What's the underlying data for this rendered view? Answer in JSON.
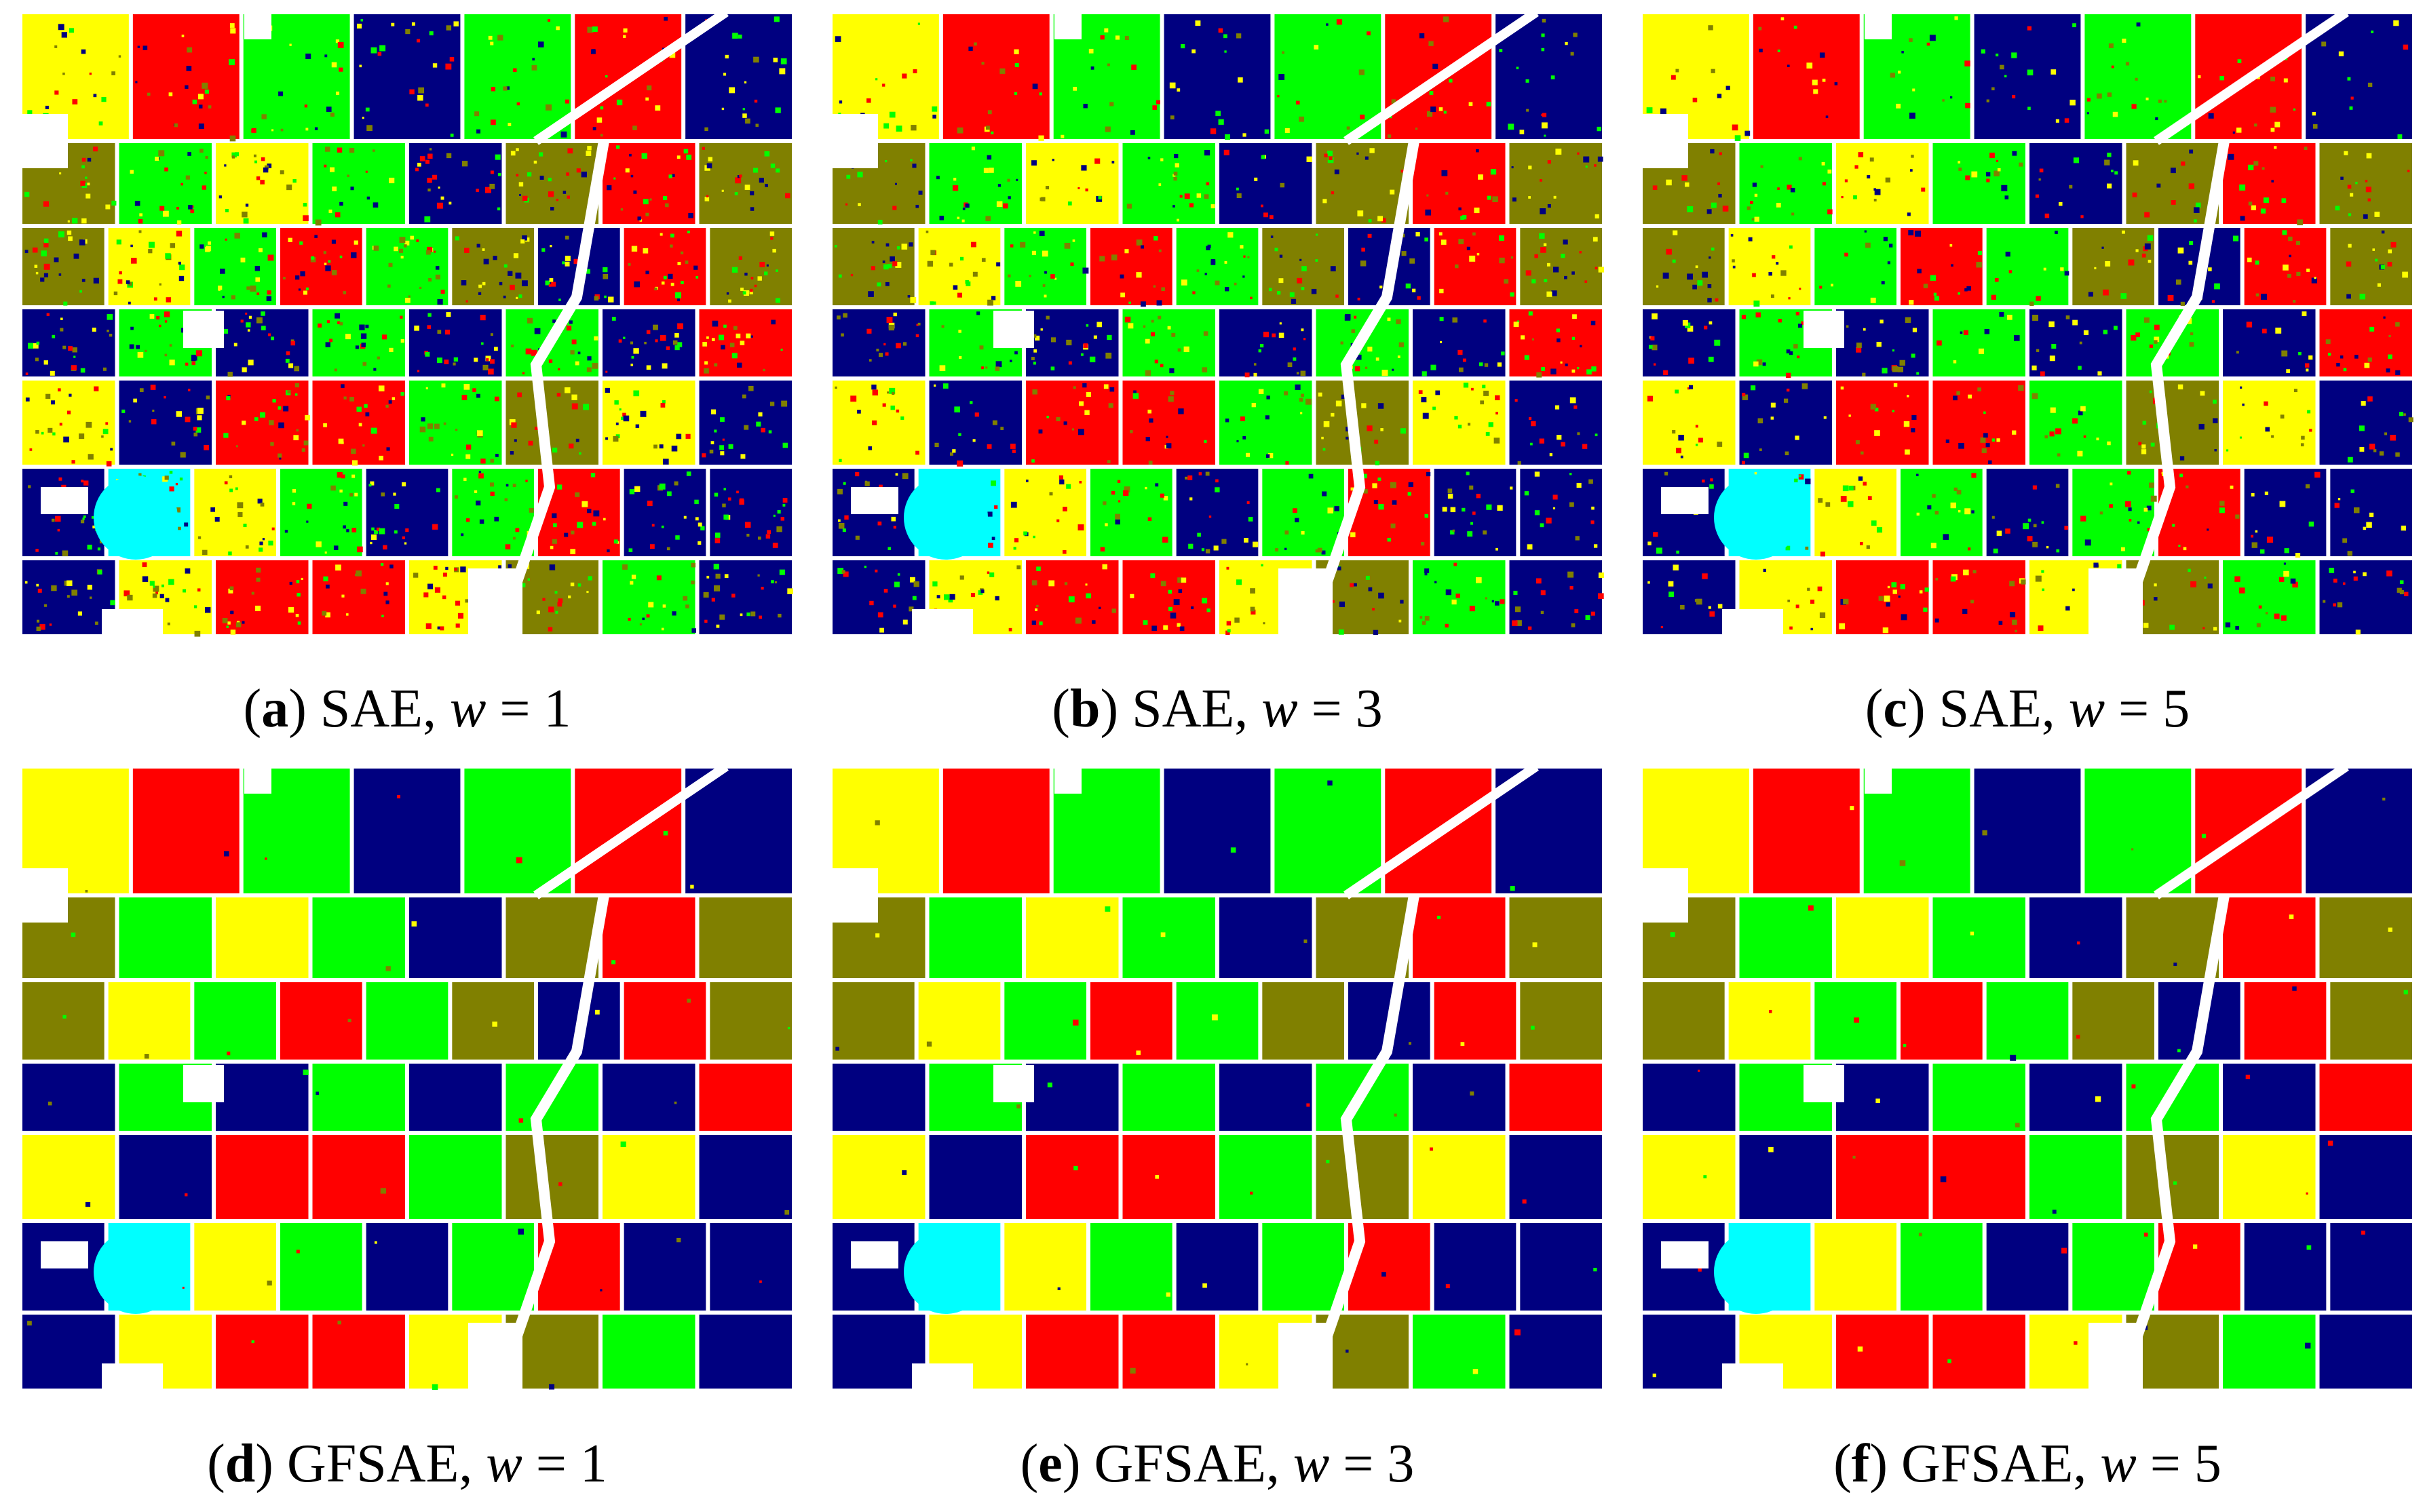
{
  "colors": {
    "yellow": "#ffff00",
    "red": "#ff0000",
    "green": "#00ff00",
    "navy": "#000080",
    "olive": "#808000",
    "cyan": "#00ffff",
    "gap": "#ffffff"
  },
  "panels": [
    {
      "letter": "a",
      "method": "SAE",
      "w_label": "w",
      "eq": " = ",
      "w_value": "1",
      "noise": 0.95
    },
    {
      "letter": "b",
      "method": "SAE",
      "w_label": "w",
      "eq": " = ",
      "w_value": "3",
      "noise": 0.75
    },
    {
      "letter": "c",
      "method": "SAE",
      "w_label": "w",
      "eq": " = ",
      "w_value": "5",
      "noise": 0.6
    },
    {
      "letter": "d",
      "method": "GFSAE",
      "w_label": "w",
      "eq": " = ",
      "w_value": "1",
      "noise": 0.05
    },
    {
      "letter": "e",
      "method": "GFSAE",
      "w_label": "w",
      "eq": " = ",
      "w_value": "3",
      "noise": 0.04
    },
    {
      "letter": "f",
      "method": "GFSAE",
      "w_label": "w",
      "eq": " = ",
      "w_value": "5",
      "noise": 0.03
    }
  ],
  "fields": [
    [
      "yellow",
      "red",
      "green",
      "navy",
      "green",
      "red",
      "navy"
    ],
    [
      "olive",
      "green",
      "yellow",
      "green",
      "navy",
      "olive",
      "red",
      "olive"
    ],
    [
      "olive",
      "yellow",
      "green",
      "red",
      "green",
      "olive",
      "navy",
      "red",
      "olive"
    ],
    [
      "navy",
      "green",
      "navy",
      "green",
      "navy",
      "green",
      "navy",
      "red"
    ],
    [
      "yellow",
      "navy",
      "red",
      "red",
      "green",
      "olive",
      "yellow",
      "navy"
    ],
    [
      "navy",
      "cyan",
      "yellow",
      "green",
      "navy",
      "green",
      "red",
      "navy",
      "navy"
    ],
    [
      "navy",
      "yellow",
      "red",
      "red",
      "yellow",
      "olive",
      "green",
      "navy"
    ]
  ]
}
